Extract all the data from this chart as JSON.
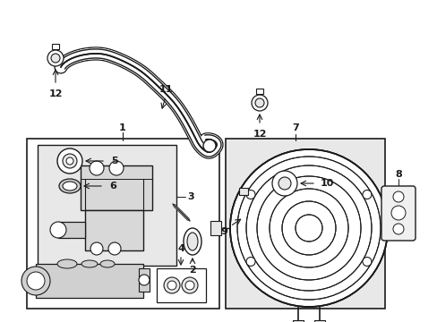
{
  "bg_color": "#ffffff",
  "line_color": "#1a1a1a",
  "gray_box": "#e8e8e8",
  "fig_width": 4.89,
  "fig_height": 3.6,
  "dpi": 100
}
